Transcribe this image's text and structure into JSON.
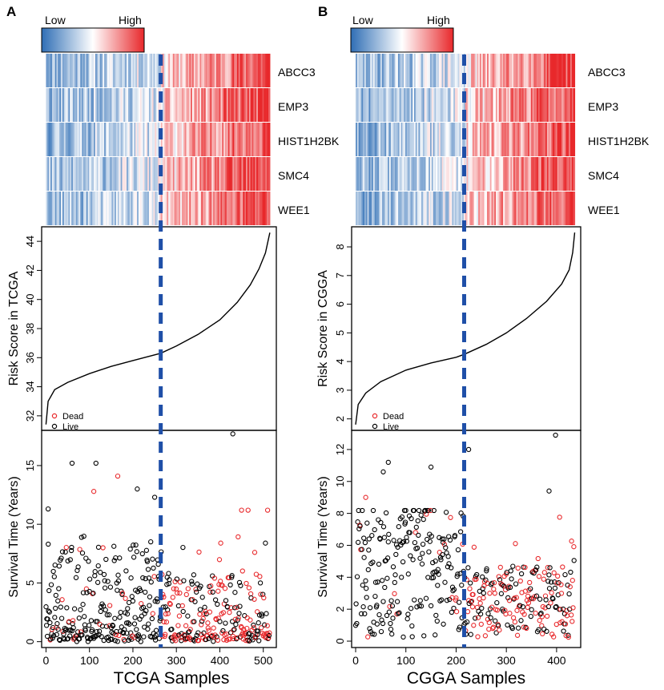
{
  "figure": {
    "type": "risk-score-heatmap-survival-panels",
    "colors": {
      "low": "#2f6eb5",
      "mid": "#ffffff",
      "high": "#e8282b",
      "cutoff_line": "#1f4fa8",
      "dead": "#e8282b",
      "live": "#000000",
      "curve": "#000000"
    }
  },
  "chart_data": [
    {
      "panel_label": "A",
      "type": "heatmap+line+scatter",
      "legend": {
        "low": "Low",
        "high": "High"
      },
      "genes": [
        "ABCC3",
        "EMP3",
        "HIST1H2BK",
        "SMC4",
        "WEE1"
      ],
      "risk_plot": {
        "ylabel": "Risk Score in TCGA",
        "yticks": [
          32,
          34,
          36,
          38,
          40,
          42,
          44
        ],
        "ylim": [
          31,
          45
        ],
        "curve_points": [
          [
            0,
            31.4
          ],
          [
            5,
            33.0
          ],
          [
            20,
            33.8
          ],
          [
            50,
            34.3
          ],
          [
            100,
            34.9
          ],
          [
            150,
            35.4
          ],
          [
            200,
            35.8
          ],
          [
            264,
            36.3
          ],
          [
            300,
            36.8
          ],
          [
            350,
            37.6
          ],
          [
            400,
            38.6
          ],
          [
            440,
            39.8
          ],
          [
            470,
            41.0
          ],
          [
            490,
            42.1
          ],
          [
            505,
            43.2
          ],
          [
            515,
            44.6
          ]
        ],
        "legend": {
          "dead": "Dead",
          "live": "Live"
        }
      },
      "survival_plot": {
        "ylabel": "Survival Time (Years)",
        "xlabel": "TCGA Samples",
        "xticks": [
          0,
          100,
          200,
          300,
          400,
          500
        ],
        "xlim": [
          -10,
          530
        ],
        "yticks": [
          0,
          5,
          10,
          15
        ],
        "ylim": [
          -0.5,
          18
        ],
        "notable_points": [
          {
            "x": 430,
            "y": 17.7,
            "status": "Live"
          },
          {
            "x": 60,
            "y": 15.2,
            "status": "Live"
          },
          {
            "x": 115,
            "y": 15.2,
            "status": "Live"
          },
          {
            "x": 165,
            "y": 14.1,
            "status": "Dead"
          },
          {
            "x": 210,
            "y": 13.0,
            "status": "Live"
          },
          {
            "x": 110,
            "y": 12.8,
            "status": "Dead"
          },
          {
            "x": 5,
            "y": 11.3,
            "status": "Live"
          },
          {
            "x": 450,
            "y": 11.2,
            "status": "Dead"
          },
          {
            "x": 465,
            "y": 11.2,
            "status": "Dead"
          },
          {
            "x": 510,
            "y": 11.2,
            "status": "Dead"
          },
          {
            "x": 250,
            "y": 12.3,
            "status": "Live"
          }
        ],
        "n_samples": 515,
        "cutoff_sample": 264
      }
    },
    {
      "panel_label": "B",
      "type": "heatmap+line+scatter",
      "legend": {
        "low": "Low",
        "high": "High"
      },
      "genes": [
        "ABCC3",
        "EMP3",
        "HIST1H2BK",
        "SMC4",
        "WEE1"
      ],
      "risk_plot": {
        "ylabel": "Risk Score in CGGA",
        "yticks": [
          2,
          3,
          4,
          5,
          6,
          7,
          8
        ],
        "ylim": [
          1.6,
          8.7
        ],
        "curve_points": [
          [
            0,
            1.8
          ],
          [
            5,
            2.5
          ],
          [
            20,
            2.9
          ],
          [
            50,
            3.3
          ],
          [
            100,
            3.7
          ],
          [
            150,
            3.95
          ],
          [
            200,
            4.15
          ],
          [
            216,
            4.25
          ],
          [
            260,
            4.6
          ],
          [
            300,
            5.0
          ],
          [
            340,
            5.5
          ],
          [
            380,
            6.1
          ],
          [
            410,
            6.7
          ],
          [
            425,
            7.2
          ],
          [
            432,
            7.8
          ],
          [
            436,
            8.5
          ]
        ],
        "legend": {
          "dead": "Dead",
          "live": "Live"
        }
      },
      "survival_plot": {
        "ylabel": "Survival Time (Years)",
        "xlabel": "CGGA Samples",
        "xticks": [
          0,
          100,
          200,
          300,
          400
        ],
        "xlim": [
          -8,
          448
        ],
        "yticks": [
          0,
          2,
          4,
          6,
          8,
          10,
          12
        ],
        "ylim": [
          -0.4,
          13.2
        ],
        "notable_points": [
          {
            "x": 398,
            "y": 12.9,
            "status": "Live"
          },
          {
            "x": 225,
            "y": 12.0,
            "status": "Live"
          },
          {
            "x": 65,
            "y": 11.2,
            "status": "Live"
          },
          {
            "x": 55,
            "y": 10.6,
            "status": "Live"
          },
          {
            "x": 150,
            "y": 10.9,
            "status": "Live"
          },
          {
            "x": 20,
            "y": 9.0,
            "status": "Dead"
          },
          {
            "x": 385,
            "y": 9.4,
            "status": "Live"
          }
        ],
        "n_samples": 436,
        "cutoff_sample": 216
      }
    }
  ]
}
